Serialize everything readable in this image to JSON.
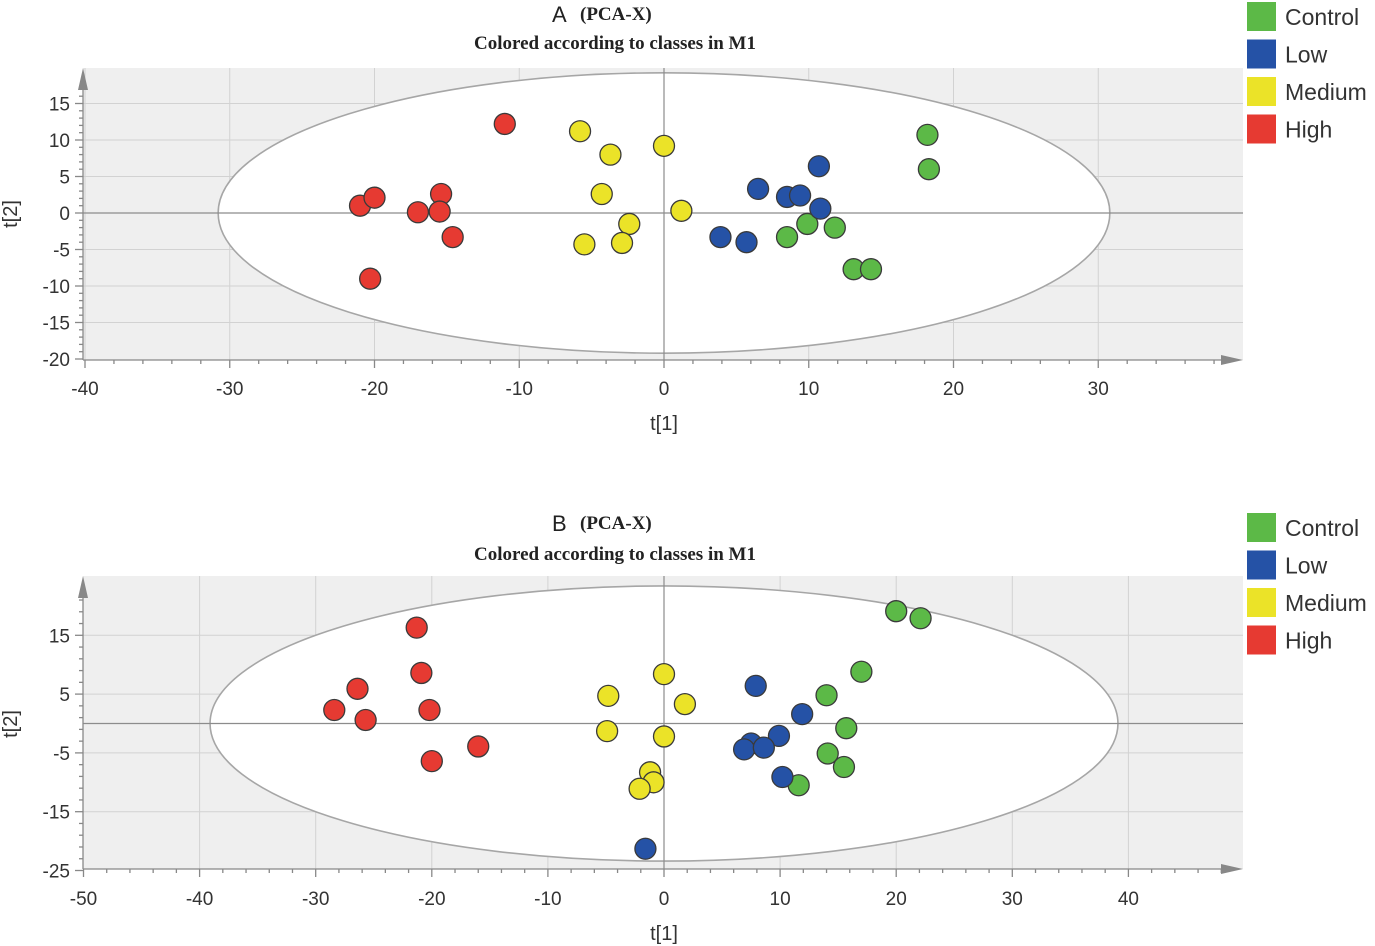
{
  "colors": {
    "Control": "#5cb947",
    "Low": "#2552a6",
    "Medium": "#ebe328",
    "High": "#e63a32"
  },
  "chart_data": [
    {
      "type": "scatter",
      "panel": "A",
      "title": "(PCA-X)",
      "subtitle": "Colored according to classes in M1",
      "xlabel": "t[1]",
      "ylabel": "t[2]",
      "xlim": [
        -40,
        40
      ],
      "ylim": [
        -20,
        20
      ],
      "xticks": [
        -40,
        -30,
        -20,
        -10,
        0,
        10,
        20,
        30
      ],
      "xtick_labels": [
        "-40",
        "-30",
        "-20",
        "-10",
        "0",
        "10",
        "20",
        "30"
      ],
      "yticks": [
        -20,
        -15,
        -10,
        -5,
        0,
        5,
        10,
        15
      ],
      "ytick_labels": [
        "-20",
        "-15",
        "-10",
        "-5",
        "0",
        "5",
        "10",
        "15"
      ],
      "ellipse": {
        "rx": 30.8,
        "ry": 19.2
      },
      "legend": [
        "Control",
        "Low",
        "Medium",
        "High"
      ],
      "series": [
        {
          "name": "Control",
          "x": [
            18.2,
            18.3,
            8.5,
            9.9,
            11.8,
            13.1,
            14.3
          ],
          "y": [
            10.7,
            6.0,
            -3.3,
            -1.5,
            -2.0,
            -7.7,
            -7.7
          ]
        },
        {
          "name": "Low",
          "x": [
            6.5,
            8.5,
            9.4,
            10.7,
            10.8,
            3.9,
            5.7
          ],
          "y": [
            3.3,
            2.2,
            2.4,
            6.4,
            0.6,
            -3.3,
            -4.0
          ]
        },
        {
          "name": "Medium",
          "x": [
            -5.8,
            -3.7,
            0.0,
            -4.3,
            -2.4,
            1.2,
            -5.5,
            -2.9
          ],
          "y": [
            11.2,
            8.0,
            9.2,
            2.6,
            -1.5,
            0.3,
            -4.3,
            -4.1
          ]
        },
        {
          "name": "High",
          "x": [
            -11.0,
            -21.0,
            -20.0,
            -17.0,
            -15.4,
            -15.5,
            -14.6,
            -20.3
          ],
          "y": [
            12.2,
            1.0,
            2.1,
            0.1,
            2.6,
            0.2,
            -3.3,
            -9.0
          ]
        }
      ]
    },
    {
      "type": "scatter",
      "panel": "B",
      "title": "(PCA-X)",
      "subtitle": "Colored according to classes in M1",
      "xlabel": "t[1]",
      "ylabel": "t[2]",
      "xlim": [
        -50,
        50
      ],
      "ylim": [
        -25,
        25
      ],
      "xticks": [
        -50,
        -40,
        -30,
        -20,
        -10,
        0,
        10,
        20,
        30,
        40
      ],
      "xtick_labels": [
        "-50",
        "-40",
        "-30",
        "-20",
        "-10",
        "0",
        "10",
        "20",
        "30",
        "40"
      ],
      "yticks": [
        -25,
        -15,
        -5,
        5,
        15
      ],
      "ytick_labels": [
        "-25",
        "-15",
        "-5",
        "5",
        "15"
      ],
      "ellipse": {
        "rx": 39.1,
        "ry": 23.4
      },
      "legend": [
        "Control",
        "Low",
        "Medium",
        "High"
      ],
      "series": [
        {
          "name": "Control",
          "x": [
            20.0,
            22.1,
            17.0,
            14.0,
            15.7,
            14.1,
            15.5,
            11.6
          ],
          "y": [
            19.1,
            17.9,
            8.8,
            4.8,
            -0.8,
            -5.1,
            -7.4,
            -10.5
          ]
        },
        {
          "name": "Low",
          "x": [
            7.9,
            11.9,
            9.9,
            7.5,
            6.9,
            8.6,
            10.2,
            -1.6
          ],
          "y": [
            6.4,
            1.6,
            -2.1,
            -3.4,
            -4.4,
            -4.1,
            -9.1,
            -21.3
          ]
        },
        {
          "name": "Medium",
          "x": [
            0.0,
            -4.8,
            1.8,
            -4.9,
            0.0,
            -1.2,
            -0.9,
            -2.1
          ],
          "y": [
            8.4,
            4.7,
            3.3,
            -1.3,
            -2.2,
            -8.3,
            -10.0,
            -11.1
          ]
        },
        {
          "name": "High",
          "x": [
            -21.3,
            -20.9,
            -26.4,
            -28.4,
            -25.7,
            -20.2,
            -16.0,
            -20.0
          ],
          "y": [
            16.3,
            8.6,
            5.9,
            2.3,
            0.6,
            2.3,
            -3.9,
            -6.4
          ]
        }
      ]
    }
  ]
}
